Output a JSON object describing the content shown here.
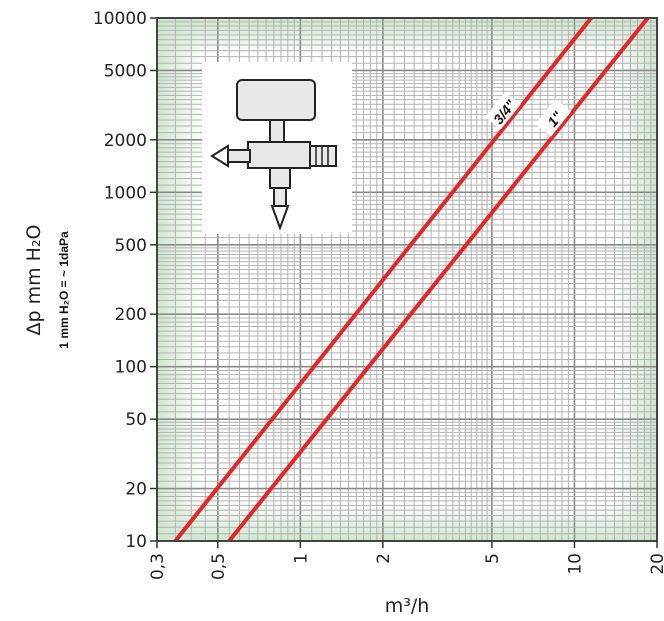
{
  "chart_data": {
    "type": "line",
    "title": "",
    "xlabel": "m³/h",
    "ylabel": "Δp mm H₂O",
    "unit_note": "1 mm H₂O = ~ 1daPa",
    "x_scale": "log",
    "y_scale": "log",
    "xlim": [
      0.3,
      20
    ],
    "ylim": [
      10,
      10000
    ],
    "x_ticks": [
      0.3,
      0.5,
      1,
      2,
      5,
      10,
      20
    ],
    "x_tick_labels": [
      "0,3",
      "0,5",
      "1",
      "2",
      "5",
      "10",
      "20"
    ],
    "y_ticks": [
      10,
      20,
      50,
      100,
      200,
      500,
      1000,
      2000,
      5000,
      10000
    ],
    "y_tick_labels": [
      "10",
      "20",
      "50",
      "100",
      "200",
      "500",
      "1000",
      "2000",
      "5000",
      "10000"
    ],
    "grid": true,
    "series": [
      {
        "name": "3/4\"",
        "color": "#e02828",
        "x": [
          0.35,
          11.5
        ],
        "y": [
          10,
          10000
        ]
      },
      {
        "name": "1\"",
        "color": "#e02828",
        "x": [
          0.55,
          18.5
        ],
        "y": [
          10,
          10000
        ]
      }
    ],
    "inset_icon": "valve-diagram"
  }
}
